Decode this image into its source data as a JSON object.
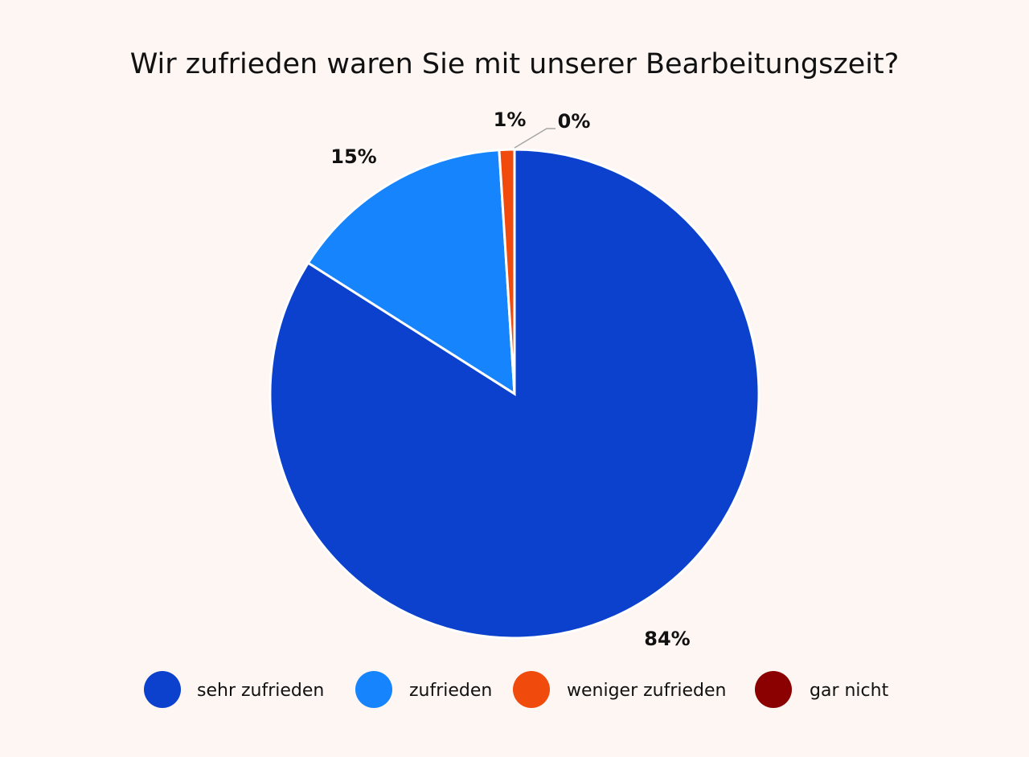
{
  "chart_data": {
    "type": "pie",
    "title": "Wir zufrieden waren Sie mit unserer Bearbeitungszeit?",
    "categories": [
      "sehr zufrieden",
      "zufrieden",
      "weniger zufrieden",
      "gar nicht"
    ],
    "values": [
      84,
      15,
      1,
      0
    ],
    "data_labels": [
      "84%",
      "15%",
      "1%",
      "0%"
    ],
    "colors": [
      "#0b41cc",
      "#1684fc",
      "#f04a0c",
      "#8b0000"
    ],
    "legend_position": "bottom",
    "start_angle": "top, clockwise"
  }
}
